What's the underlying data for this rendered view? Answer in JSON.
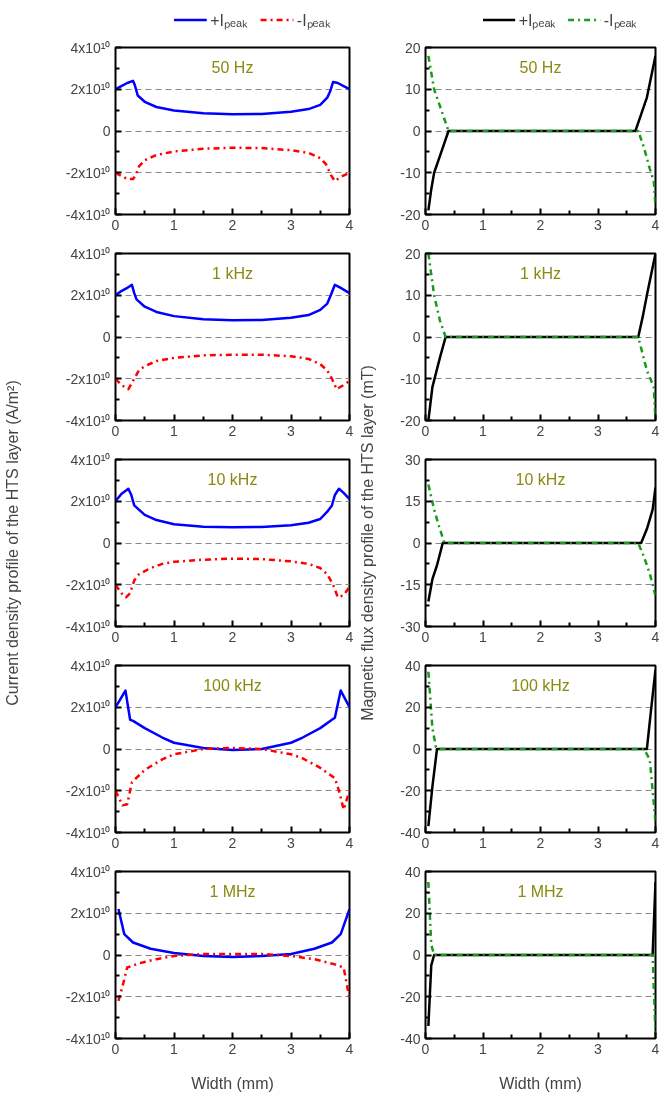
{
  "chart_data": [
    {
      "type": "line",
      "annotations": [
        "50 Hz"
      ],
      "legend": "top",
      "grid": "y",
      "xlim": [
        0,
        4
      ],
      "xticks": [
        0,
        1,
        2,
        3,
        4
      ],
      "ylim": [
        -40000000000.0,
        40000000000.0
      ],
      "yticks": [
        {
          "value": -40000000000.0,
          "label": "-4x10¹⁰"
        },
        {
          "value": -20000000000.0,
          "label": "-2x10¹⁰"
        },
        0,
        {
          "value": 20000000000.0,
          "label": "2x10¹⁰"
        },
        {
          "value": 40000000000.0,
          "label": "4x10¹⁰"
        }
      ],
      "series": [
        {
          "name": "+Iₚₑₐₖ",
          "color": "#0000ff",
          "line_style": "solid",
          "x": [
            0,
            0.1,
            0.2,
            0.3,
            0.33,
            0.38,
            0.5,
            0.7,
            1.0,
            1.5,
            2.0,
            2.5,
            3.0,
            3.3,
            3.5,
            3.62,
            3.67,
            3.72,
            3.8,
            3.9,
            4.0
          ],
          "values": [
            20000000000.0,
            21500000000.0,
            23000000000.0,
            24000000000.0,
            22000000000.0,
            17000000000.0,
            14000000000.0,
            11500000000.0,
            9800000000.0,
            8500000000.0,
            8000000000.0,
            8200000000.0,
            9200000000.0,
            10500000000.0,
            12500000000.0,
            16000000000.0,
            19000000000.0,
            23500000000.0,
            23000000000.0,
            21500000000.0,
            20000000000.0
          ]
        },
        {
          "name": "-Iₚₑₐₖ",
          "color": "#ff0000",
          "line_style": "dashdot",
          "x": [
            0,
            0.1,
            0.2,
            0.3,
            0.35,
            0.4,
            0.5,
            0.7,
            1.0,
            1.5,
            2.0,
            2.5,
            3.0,
            3.3,
            3.5,
            3.6,
            3.68,
            3.75,
            3.85,
            4.0
          ],
          "values": [
            -20000000000.0,
            -21500000000.0,
            -23000000000.0,
            -23000000000.0,
            -21000000000.0,
            -17000000000.0,
            -14000000000.0,
            -11500000000.0,
            -9800000000.0,
            -8500000000.0,
            -8000000000.0,
            -8200000000.0,
            -9200000000.0,
            -10500000000.0,
            -13000000000.0,
            -16000000000.0,
            -21000000000.0,
            -24000000000.0,
            -22000000000.0,
            -20000000000.0
          ]
        }
      ]
    },
    {
      "type": "line",
      "annotations": [
        "50 Hz"
      ],
      "legend": "top",
      "grid": "y",
      "xlim": [
        0,
        4
      ],
      "xticks": [
        0,
        1,
        2,
        3,
        4
      ],
      "ylim": [
        -20,
        20
      ],
      "yticks": [
        -20,
        -10,
        0,
        10,
        20
      ],
      "series": [
        {
          "name": "+Iₚₑₐₖ",
          "color": "#000000",
          "line_style": "solid",
          "x": [
            0.05,
            0.1,
            0.15,
            0.25,
            0.4,
            3.65,
            3.75,
            3.85,
            4.0
          ],
          "values": [
            -19,
            -14,
            -10,
            -6,
            0,
            0,
            4,
            8,
            18
          ]
        },
        {
          "name": "-Iₚₑₐₖ",
          "color": "#1a9a1a",
          "line_style": "dashdot",
          "x": [
            0.05,
            0.15,
            0.25,
            0.4,
            3.7,
            3.8,
            3.9,
            3.97,
            4.0
          ],
          "values": [
            18,
            10,
            6,
            0,
            0,
            -4,
            -9,
            -12,
            -18
          ]
        }
      ]
    },
    {
      "type": "line",
      "annotations": [
        "1 kHz"
      ],
      "grid": "y",
      "xlim": [
        0,
        4
      ],
      "xticks": [
        0,
        1,
        2,
        3,
        4
      ],
      "ylim": [
        -40000000000.0,
        40000000000.0
      ],
      "yticks": [
        {
          "value": -40000000000.0,
          "label": "-4x10¹⁰"
        },
        {
          "value": -20000000000.0,
          "label": "-2x10¹⁰"
        },
        0,
        {
          "value": 20000000000.0,
          "label": "2x10¹⁰"
        },
        {
          "value": 40000000000.0,
          "label": "4x10¹⁰"
        }
      ],
      "series": [
        {
          "color": "#0000ff",
          "line_style": "solid",
          "x": [
            0,
            0.1,
            0.2,
            0.28,
            0.32,
            0.36,
            0.5,
            0.7,
            1.0,
            1.5,
            2.0,
            2.5,
            3.0,
            3.3,
            3.5,
            3.62,
            3.68,
            3.75,
            3.85,
            4.0
          ],
          "values": [
            20000000000.0,
            22000000000.0,
            23500000000.0,
            25000000000.0,
            21000000000.0,
            18000000000.0,
            14500000000.0,
            12000000000.0,
            10000000000.0,
            8500000000.0,
            8000000000.0,
            8200000000.0,
            9200000000.0,
            10500000000.0,
            13000000000.0,
            16000000000.0,
            20000000000.0,
            25000000000.0,
            23500000000.0,
            21000000000.0
          ]
        },
        {
          "color": "#ff0000",
          "line_style": "dashdot",
          "x": [
            0,
            0.1,
            0.22,
            0.3,
            0.4,
            0.5,
            0.7,
            1.0,
            1.5,
            2.0,
            2.5,
            3.0,
            3.3,
            3.5,
            3.62,
            3.7,
            3.78,
            3.9,
            4.0
          ],
          "values": [
            -20000000000.0,
            -23000000000.0,
            -25000000000.0,
            -21000000000.0,
            -16000000000.0,
            -14000000000.0,
            -11500000000.0,
            -10000000000.0,
            -8800000000.0,
            -8500000000.0,
            -8500000000.0,
            -9200000000.0,
            -10500000000.0,
            -13000000000.0,
            -16000000000.0,
            -20000000000.0,
            -25000000000.0,
            -23000000000.0,
            -21000000000.0
          ]
        }
      ]
    },
    {
      "type": "line",
      "annotations": [
        "1 kHz"
      ],
      "grid": "y",
      "xlim": [
        0,
        4
      ],
      "xticks": [
        0,
        1,
        2,
        3,
        4
      ],
      "ylim": [
        -20,
        20
      ],
      "yticks": [
        -20,
        -10,
        0,
        10,
        20
      ],
      "series": [
        {
          "color": "#000000",
          "line_style": "solid",
          "x": [
            0.05,
            0.12,
            0.25,
            0.35,
            3.7,
            3.78,
            3.85,
            4.0
          ],
          "values": [
            -20,
            -12,
            -5,
            0,
            0,
            5,
            10,
            20
          ]
        },
        {
          "color": "#1a9a1a",
          "line_style": "dashdot",
          "x": [
            0.05,
            0.15,
            0.25,
            0.35,
            3.7,
            3.85,
            3.97,
            4.0
          ],
          "values": [
            20,
            10,
            4,
            0,
            0,
            -8,
            -12,
            -20
          ]
        }
      ]
    },
    {
      "type": "line",
      "annotations": [
        "10 kHz"
      ],
      "grid": "y",
      "ylabel": "Current density profile of the HTS layer (A/m²)",
      "xlim": [
        0,
        4
      ],
      "xticks": [
        0,
        1,
        2,
        3,
        4
      ],
      "ylim": [
        -40000000000.0,
        40000000000.0
      ],
      "yticks": [
        {
          "value": -40000000000.0,
          "label": "-4x10¹⁰"
        },
        {
          "value": -20000000000.0,
          "label": "-2x10¹⁰"
        },
        0,
        {
          "value": 20000000000.0,
          "label": "2x10¹⁰"
        },
        {
          "value": 40000000000.0,
          "label": "4x10¹⁰"
        }
      ],
      "series": [
        {
          "color": "#0000ff",
          "line_style": "solid",
          "x": [
            0,
            0.1,
            0.22,
            0.27,
            0.32,
            0.4,
            0.5,
            0.7,
            1.0,
            1.5,
            2.0,
            2.5,
            3.0,
            3.3,
            3.5,
            3.62,
            3.7,
            3.75,
            3.82,
            3.9,
            4.0
          ],
          "values": [
            20000000000.0,
            23500000000.0,
            26000000000.0,
            23000000000.0,
            18000000000.0,
            16000000000.0,
            13500000000.0,
            11000000000.0,
            9000000000.0,
            7800000000.0,
            7500000000.0,
            7700000000.0,
            8500000000.0,
            9700000000.0,
            11500000000.0,
            15000000000.0,
            18000000000.0,
            23000000000.0,
            26000000000.0,
            24000000000.0,
            21000000000.0
          ]
        },
        {
          "color": "#ff0000",
          "line_style": "dashdot",
          "x": [
            0,
            0.1,
            0.18,
            0.25,
            0.32,
            0.4,
            0.6,
            0.8,
            1.0,
            1.5,
            2.0,
            2.5,
            3.0,
            3.3,
            3.5,
            3.62,
            3.72,
            3.8,
            3.9,
            4.0
          ],
          "values": [
            -20000000000.0,
            -24000000000.0,
            -26000000000.0,
            -24000000000.0,
            -18000000000.0,
            -15000000000.0,
            -12000000000.0,
            -10000000000.0,
            -9000000000.0,
            -8000000000.0,
            -7500000000.0,
            -7700000000.0,
            -8800000000.0,
            -10000000000.0,
            -12000000000.0,
            -15000000000.0,
            -20000000000.0,
            -26000000000.0,
            -25000000000.0,
            -21000000000.0
          ]
        }
      ]
    },
    {
      "type": "line",
      "annotations": [
        "10 kHz"
      ],
      "grid": "y",
      "ylabel": "Magnetic flux density profile of the HTS layer (mT)",
      "xlim": [
        0,
        4
      ],
      "xticks": [
        0,
        1,
        2,
        3,
        4
      ],
      "ylim": [
        -30,
        30
      ],
      "yticks": [
        -30,
        -15,
        0,
        15,
        30
      ],
      "series": [
        {
          "color": "#000000",
          "line_style": "solid",
          "x": [
            0.05,
            0.12,
            0.2,
            0.3,
            3.75,
            3.85,
            3.95,
            4.0
          ],
          "values": [
            -21,
            -13,
            -8,
            0,
            0,
            5,
            12,
            20
          ]
        },
        {
          "color": "#1a9a1a",
          "line_style": "dashdot",
          "x": [
            0.05,
            0.15,
            0.25,
            0.33,
            3.7,
            3.8,
            3.9,
            4.0
          ],
          "values": [
            21,
            12,
            5,
            0,
            0,
            -5,
            -11,
            -19
          ]
        }
      ]
    },
    {
      "type": "line",
      "annotations": [
        "100 kHz"
      ],
      "grid": "y",
      "xlim": [
        0,
        4
      ],
      "xticks": [
        0,
        1,
        2,
        3,
        4
      ],
      "ylim": [
        -40000000000.0,
        40000000000.0
      ],
      "yticks": [
        {
          "value": -40000000000.0,
          "label": "-4x10¹⁰"
        },
        {
          "value": -20000000000.0,
          "label": "-2x10¹⁰"
        },
        0,
        {
          "value": 20000000000.0,
          "label": "2x10¹⁰"
        },
        {
          "value": 40000000000.0,
          "label": "4x10¹⁰"
        }
      ],
      "series": [
        {
          "color": "#0000ff",
          "line_style": "solid",
          "x": [
            0,
            0.17,
            0.25,
            0.3,
            0.5,
            0.8,
            1.0,
            1.5,
            2.0,
            2.5,
            3.0,
            3.2,
            3.5,
            3.7,
            3.75,
            3.85,
            4.0
          ],
          "values": [
            20000000000.0,
            28000000000.0,
            14000000000.0,
            13500000000.0,
            10000000000.0,
            5500000000.0,
            3000000000.0,
            500000000.0,
            -500000000.0,
            0.0,
            3000000000.0,
            5500000000.0,
            10000000000.0,
            14000000000.0,
            15000000000.0,
            28000000000.0,
            20000000000.0
          ]
        },
        {
          "color": "#ff0000",
          "line_style": "dashdot",
          "x": [
            0,
            0.12,
            0.2,
            0.28,
            0.5,
            0.8,
            1.0,
            1.5,
            2.0,
            2.5,
            3.0,
            3.2,
            3.5,
            3.75,
            3.82,
            3.9,
            4.0
          ],
          "values": [
            -20000000000.0,
            -27000000000.0,
            -26500000000.0,
            -16000000000.0,
            -10000000000.0,
            -5000000000.0,
            -2500000000.0,
            0.0,
            500000000.0,
            0.0,
            -2500000000.0,
            -4500000000.0,
            -9000000000.0,
            -14000000000.0,
            -20000000000.0,
            -29000000000.0,
            -20000000000.0
          ]
        }
      ]
    },
    {
      "type": "line",
      "annotations": [
        "100 kHz"
      ],
      "grid": "y",
      "xlim": [
        0,
        4
      ],
      "xticks": [
        0,
        1,
        2,
        3,
        4
      ],
      "ylim": [
        -40,
        40
      ],
      "yticks": [
        -40,
        -20,
        0,
        20,
        40
      ],
      "series": [
        {
          "color": "#000000",
          "line_style": "solid",
          "x": [
            0.05,
            0.12,
            0.2,
            3.85,
            3.92,
            4.0
          ],
          "values": [
            -37,
            -18,
            0,
            0,
            18,
            38
          ]
        },
        {
          "color": "#1a9a1a",
          "line_style": "dashdot",
          "x": [
            0.05,
            0.12,
            0.18,
            0.25,
            3.8,
            3.9,
            4.0
          ],
          "values": [
            37,
            10,
            1,
            0,
            0,
            -5,
            -35
          ]
        }
      ]
    },
    {
      "type": "line",
      "annotations": [
        "1 MHz"
      ],
      "grid": "y",
      "xlabel": "Width (mm)",
      "xlim": [
        0,
        4
      ],
      "xticks": [
        0,
        1,
        2,
        3,
        4
      ],
      "ylim": [
        -40000000000.0,
        40000000000.0
      ],
      "yticks": [
        {
          "value": -40000000000.0,
          "label": "-4x10¹⁰"
        },
        {
          "value": -20000000000.0,
          "label": "-2x10¹⁰"
        },
        0,
        {
          "value": 20000000000.0,
          "label": "2x10¹⁰"
        },
        {
          "value": 40000000000.0,
          "label": "4x10¹⁰"
        }
      ],
      "series": [
        {
          "color": "#0000ff",
          "line_style": "solid",
          "x": [
            0.05,
            0.15,
            0.3,
            0.6,
            1.0,
            1.5,
            2.0,
            2.5,
            3.0,
            3.4,
            3.7,
            3.85,
            4.0
          ],
          "values": [
            22000000000.0,
            10000000000.0,
            6000000000.0,
            3000000000.0,
            1000000000.0,
            -500000000.0,
            -1000000000.0,
            -500000000.0,
            500000000.0,
            3000000000.0,
            6000000000.0,
            10000000000.0,
            22000000000.0
          ]
        },
        {
          "color": "#ff0000",
          "line_style": "dashdot",
          "x": [
            0.05,
            0.12,
            0.2,
            0.4,
            0.7,
            1.0,
            1.5,
            2.0,
            2.5,
            3.0,
            3.4,
            3.75,
            3.85,
            3.9,
            4.0
          ],
          "values": [
            -22000000000.0,
            -15000000000.0,
            -6000000000.0,
            -4000000000.0,
            -2000000000.0,
            -500000000.0,
            500000000.0,
            500000000.0,
            500000000.0,
            -500000000.0,
            -2000000000.0,
            -4500000000.0,
            -5500000000.0,
            -6000000000.0,
            -21000000000.0
          ]
        }
      ]
    },
    {
      "type": "line",
      "annotations": [
        "1 MHz"
      ],
      "grid": "y",
      "xlabel": "Width (mm)",
      "xlim": [
        0,
        4
      ],
      "xticks": [
        0,
        1,
        2,
        3,
        4
      ],
      "ylim": [
        -40,
        40
      ],
      "yticks": [
        -40,
        -20,
        0,
        20,
        40
      ],
      "series": [
        {
          "color": "#000000",
          "line_style": "solid",
          "x": [
            0.05,
            0.1,
            0.15,
            3.95,
            4.0
          ],
          "values": [
            -34,
            -5,
            0,
            0,
            35
          ]
        },
        {
          "color": "#1a9a1a",
          "line_style": "dashdot",
          "x": [
            0.05,
            0.1,
            0.15,
            3.95,
            4.0
          ],
          "values": [
            35,
            5,
            0,
            0,
            -38
          ]
        }
      ]
    }
  ]
}
